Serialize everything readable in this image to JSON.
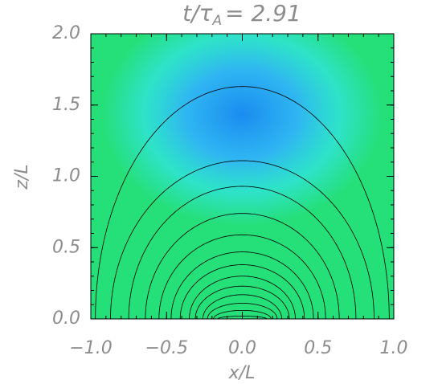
{
  "chart_data": {
    "type": "contour",
    "title": {
      "text": "t/τ",
      "subscript": "A",
      "suffix": "= 2.91"
    },
    "x_label": "x/L",
    "y_label": "z/L",
    "xlim": [
      -1,
      1
    ],
    "ylim": [
      0,
      2
    ],
    "xticks": [
      {
        "value": -1,
        "label": "−1.0"
      },
      {
        "value": -0.5,
        "label": "−0.5"
      },
      {
        "value": 0,
        "label": "0.0"
      },
      {
        "value": 0.5,
        "label": "0.5"
      },
      {
        "value": 1,
        "label": "1.0"
      }
    ],
    "yticks": [
      {
        "value": 0,
        "label": "0.0"
      },
      {
        "value": 0.5,
        "label": "0.5"
      },
      {
        "value": 1,
        "label": "1.0"
      },
      {
        "value": 1.5,
        "label": "1.5"
      },
      {
        "value": 2,
        "label": "2.0"
      }
    ],
    "xminorticks": [
      -1,
      -0.9,
      -0.8,
      -0.7,
      -0.6,
      -0.5,
      -0.4,
      -0.3,
      -0.2,
      -0.1,
      0,
      0.1,
      0.2,
      0.3,
      0.4,
      0.5,
      0.6,
      0.7,
      0.8,
      0.9,
      1
    ],
    "yminorticks": [
      0,
      0.1,
      0.2,
      0.3,
      0.4,
      0.5,
      0.6,
      0.7,
      0.8,
      0.9,
      1,
      1.1,
      1.2,
      1.3,
      1.4,
      1.5,
      1.6,
      1.7,
      1.8,
      1.9,
      2
    ],
    "contours": {
      "apex": [
        1.63,
        1.11,
        0.93,
        0.74,
        0.59,
        0.47,
        0.38,
        0.3,
        0.23,
        0.17,
        0.11,
        0.06,
        0.02
      ],
      "halfwidth": [
        0.97,
        0.87,
        0.75,
        0.64,
        0.55,
        0.47,
        0.41,
        0.35,
        0.31,
        0.26,
        0.23,
        0.19,
        0.16
      ],
      "color": "#000000"
    },
    "colors": {
      "background": "#25df78",
      "blob": [
        "#1a8cf0",
        "#2fb6f2",
        "#30e4dc"
      ],
      "text": "#8c8c8c"
    }
  }
}
